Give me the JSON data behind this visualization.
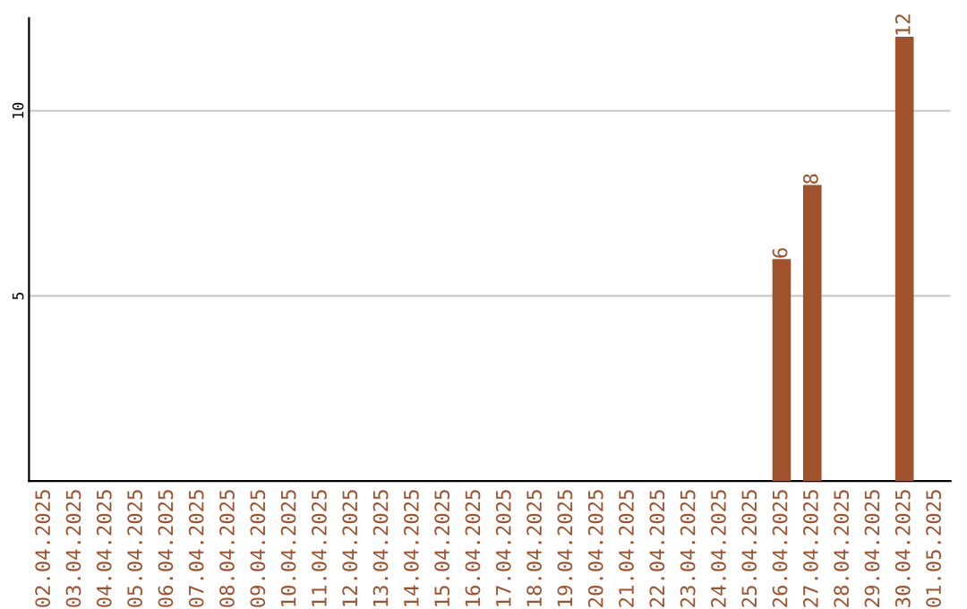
{
  "chart_data": {
    "type": "bar",
    "categories": [
      "02.04.2025",
      "03.04.2025",
      "04.04.2025",
      "05.04.2025",
      "06.04.2025",
      "07.04.2025",
      "08.04.2025",
      "09.04.2025",
      "10.04.2025",
      "11.04.2025",
      "12.04.2025",
      "13.04.2025",
      "14.04.2025",
      "15.04.2025",
      "16.04.2025",
      "17.04.2025",
      "18.04.2025",
      "19.04.2025",
      "20.04.2025",
      "21.04.2025",
      "22.04.2025",
      "23.04.2025",
      "24.04.2025",
      "25.04.2025",
      "26.04.2025",
      "27.04.2025",
      "28.04.2025",
      "29.04.2025",
      "30.04.2025",
      "01.05.2025"
    ],
    "values": [
      0,
      0,
      0,
      0,
      0,
      0,
      0,
      0,
      0,
      0,
      0,
      0,
      0,
      0,
      0,
      0,
      0,
      0,
      0,
      0,
      0,
      0,
      0,
      0,
      6,
      8,
      0,
      0,
      12,
      0
    ],
    "value_labels": [
      null,
      null,
      null,
      null,
      null,
      null,
      null,
      null,
      null,
      null,
      null,
      null,
      null,
      null,
      null,
      null,
      null,
      null,
      null,
      null,
      null,
      null,
      null,
      null,
      "6",
      "8",
      null,
      null,
      "12",
      null
    ],
    "color": "#a0522d",
    "ylim": [
      0,
      12.5
    ],
    "yticks": [
      5,
      10
    ],
    "grid": "y"
  }
}
